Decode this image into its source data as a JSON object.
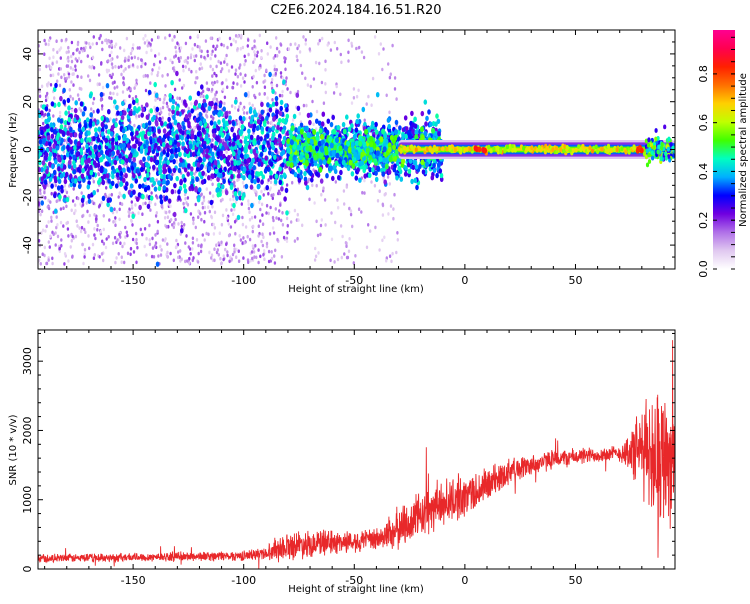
{
  "title": "C2E6.2024.184.16.51.R20",
  "chart_data": [
    {
      "type": "heatmap",
      "xlabel": "Height of straight line (km)",
      "ylabel": "Frequency (Hz)",
      "xlim": [
        -193,
        95
      ],
      "ylim": [
        -50,
        50
      ],
      "x_ticks": [
        -150,
        -100,
        -50,
        0,
        50
      ],
      "y_ticks": [
        40,
        20,
        0,
        -20,
        -40
      ],
      "grid": false,
      "colorbar": {
        "label": "Normalized spectral amplitude",
        "ticks": [
          "0.0",
          "0.2",
          "0.4",
          "0.6",
          "0.8"
        ],
        "tick_values": [
          0.0,
          0.2,
          0.4,
          0.6,
          0.8
        ],
        "range": [
          0,
          0.98
        ],
        "colormap": [
          "#ffffff",
          "#e0c8f0",
          "#b070e8",
          "#7000e0",
          "#0000ff",
          "#00b0ff",
          "#00ffc0",
          "#40ff00",
          "#c0ff00",
          "#ffd000",
          "#ff7000",
          "#ff2000",
          "#ff0050",
          "#ff0090"
        ]
      },
      "features": [
        {
          "name": "scattered noise",
          "x_range": [
            -193,
            -80
          ],
          "freq_spread": 48,
          "amplitude": 0.15
        },
        {
          "name": "central band",
          "x_range": [
            -193,
            -10
          ],
          "freq_width": 10,
          "amplitude": 0.25
        },
        {
          "name": "central band",
          "x_range": [
            -80,
            -10
          ],
          "freq_width": 6,
          "amplitude": 0.45
        },
        {
          "name": "narrow line",
          "x_range": [
            -30,
            95
          ],
          "freq_width": 2,
          "amplitude": 0.6
        },
        {
          "name": "narrow line peaks",
          "x": [
            7,
            80,
            90
          ],
          "amplitude": 0.8
        }
      ]
    },
    {
      "type": "line",
      "xlabel": "Height of straight line (km)",
      "ylabel": "SNR (10 * v/v)",
      "xlim": [
        -193,
        95
      ],
      "ylim": [
        0,
        3450
      ],
      "x_ticks": [
        -150,
        -100,
        -50,
        0,
        50
      ],
      "y_ticks": [
        0,
        1000,
        2000,
        3000
      ],
      "line_color": "#e8282a",
      "series": [
        {
          "x": [
            -193,
            -150,
            -100,
            -90,
            -85,
            -75,
            -60,
            -50,
            -40,
            -30,
            -20,
            -10,
            0,
            10,
            20,
            30,
            40,
            50,
            60,
            70,
            80,
            85,
            90,
            95
          ],
          "mean": [
            150,
            170,
            190,
            230,
            300,
            360,
            380,
            400,
            420,
            580,
            780,
            950,
            1050,
            1200,
            1420,
            1500,
            1580,
            1620,
            1650,
            1670,
            1700,
            1700,
            1650,
            1600
          ],
          "spread": [
            60,
            60,
            70,
            90,
            180,
            200,
            170,
            150,
            160,
            300,
            330,
            320,
            300,
            260,
            180,
            150,
            130,
            120,
            110,
            110,
            600,
            900,
            1000,
            900
          ]
        }
      ]
    }
  ]
}
